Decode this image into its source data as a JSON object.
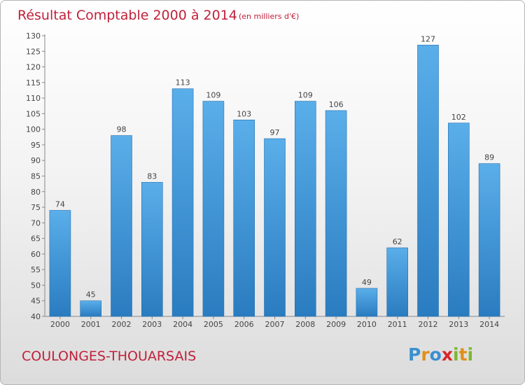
{
  "title": "Résultat Comptable 2000 à 2014",
  "subtitle": "(en milliers d'€)",
  "commune": "COULONGES-THOUARSAIS",
  "logo": {
    "letters": [
      "P",
      "r",
      "o",
      "x",
      "i",
      "t",
      "i"
    ],
    "colors": [
      "#3a8fd0",
      "#e0901a",
      "#3a8fd0",
      "#d9262b",
      "#7cb82f",
      "#e0901a",
      "#7cb82f"
    ]
  },
  "colors": {
    "bar_top": "#5aaee9",
    "bar_bottom": "#2a7cc0",
    "bar_edge": "#2370b3",
    "title": "#c0203a"
  },
  "chart_data": {
    "type": "bar",
    "title": "Résultat Comptable 2000 à 2014",
    "subtitle": "(en milliers d'€)",
    "categories": [
      "2000",
      "2001",
      "2002",
      "2003",
      "2004",
      "2005",
      "2006",
      "2007",
      "2008",
      "2009",
      "2010",
      "2011",
      "2012",
      "2013",
      "2014"
    ],
    "values": [
      74,
      45,
      98,
      83,
      113,
      109,
      103,
      97,
      109,
      106,
      49,
      62,
      127,
      102,
      89
    ],
    "ylim": [
      40,
      130
    ],
    "yticks": [
      40,
      45,
      50,
      55,
      60,
      65,
      70,
      75,
      80,
      85,
      90,
      95,
      100,
      105,
      110,
      115,
      120,
      125,
      130
    ],
    "grid": false,
    "legend": "none"
  }
}
